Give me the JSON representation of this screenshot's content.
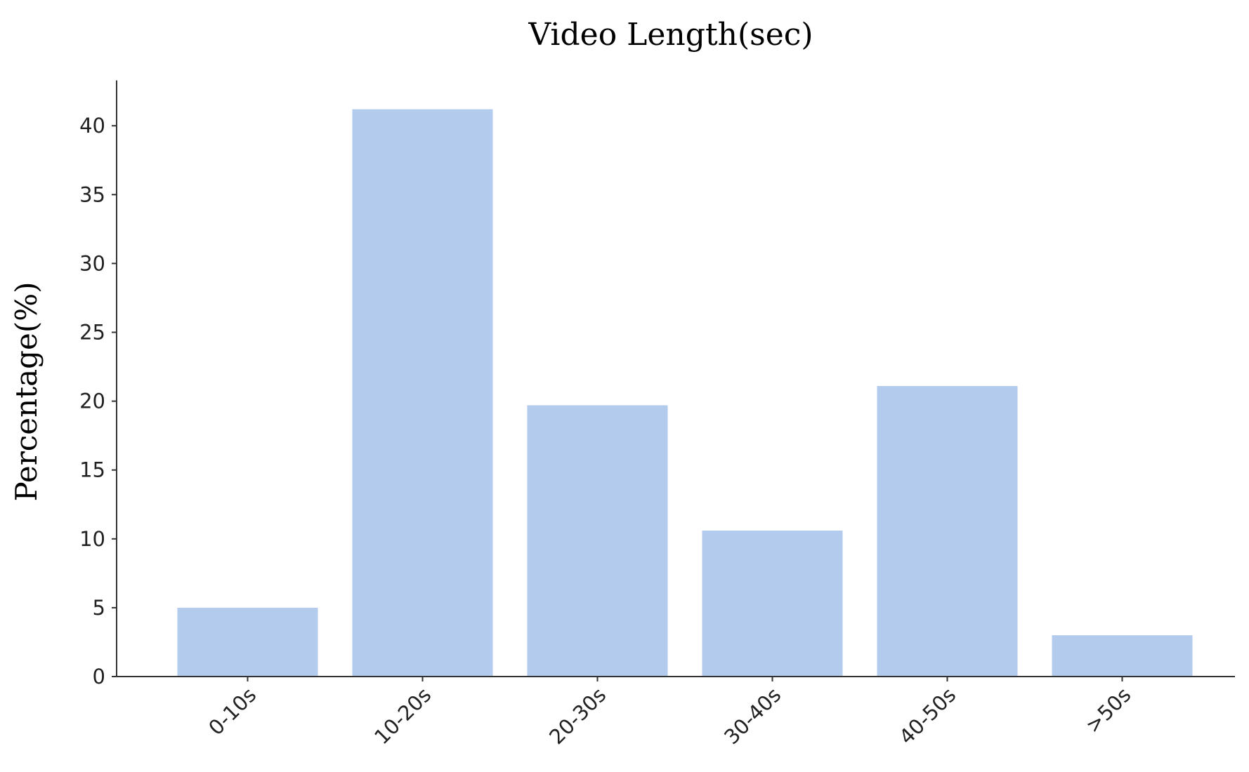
{
  "chart_data": {
    "type": "bar",
    "title": "Video Length(sec)",
    "xlabel": "",
    "ylabel": "Percentage(%)",
    "categories": [
      "0-10s",
      "10-20s",
      "20-30s",
      "30-40s",
      "40-50s",
      ">50s"
    ],
    "values": [
      5.0,
      41.2,
      19.7,
      10.6,
      21.1,
      3.0
    ],
    "ylim": [
      0,
      43.3
    ],
    "yticks": [
      0,
      5,
      10,
      15,
      20,
      25,
      30,
      35,
      40
    ],
    "bar_color": "#b3cbed",
    "grid": false,
    "legend": "none",
    "xtick_rotation": "45deg"
  }
}
